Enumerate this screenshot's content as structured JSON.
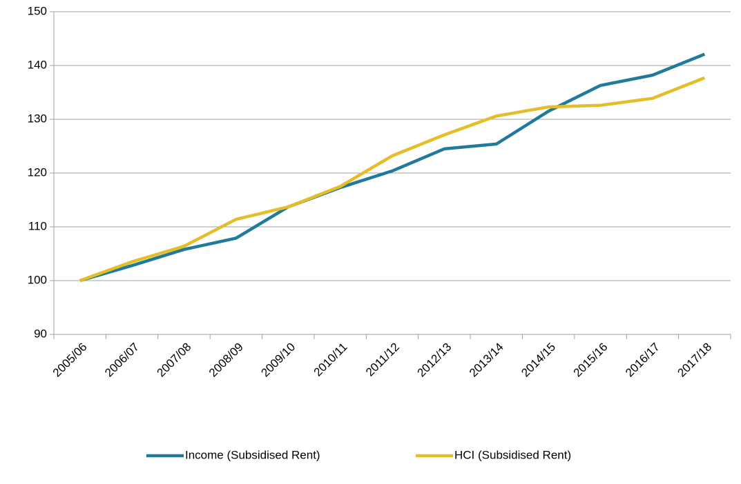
{
  "chart_data": {
    "type": "line",
    "categories": [
      "2005/06",
      "2006/07",
      "2007/08",
      "2008/09",
      "2009/10",
      "2010/11",
      "2011/12",
      "2012/13",
      "2013/14",
      "2014/15",
      "2015/16",
      "2016/17",
      "2017/18"
    ],
    "series": [
      {
        "name": "Income (Subsidised Rent)",
        "color": "#1f7a9b",
        "values": [
          100,
          102.8,
          105.8,
          107.9,
          113.7,
          117.3,
          120.4,
          124.5,
          125.4,
          131.5,
          136.3,
          138.2,
          142.1
        ]
      },
      {
        "name": "HCI (Subsidised Rent)",
        "color": "#e5bd2b",
        "values": [
          100,
          103.5,
          106.4,
          111.4,
          113.7,
          117.5,
          123.2,
          127.1,
          130.6,
          132.3,
          132.6,
          133.9,
          137.7
        ]
      }
    ],
    "ylim": [
      90,
      150
    ],
    "yticks": [
      90,
      100,
      110,
      120,
      130,
      140,
      150
    ],
    "grid": true,
    "legend": "bottom"
  }
}
